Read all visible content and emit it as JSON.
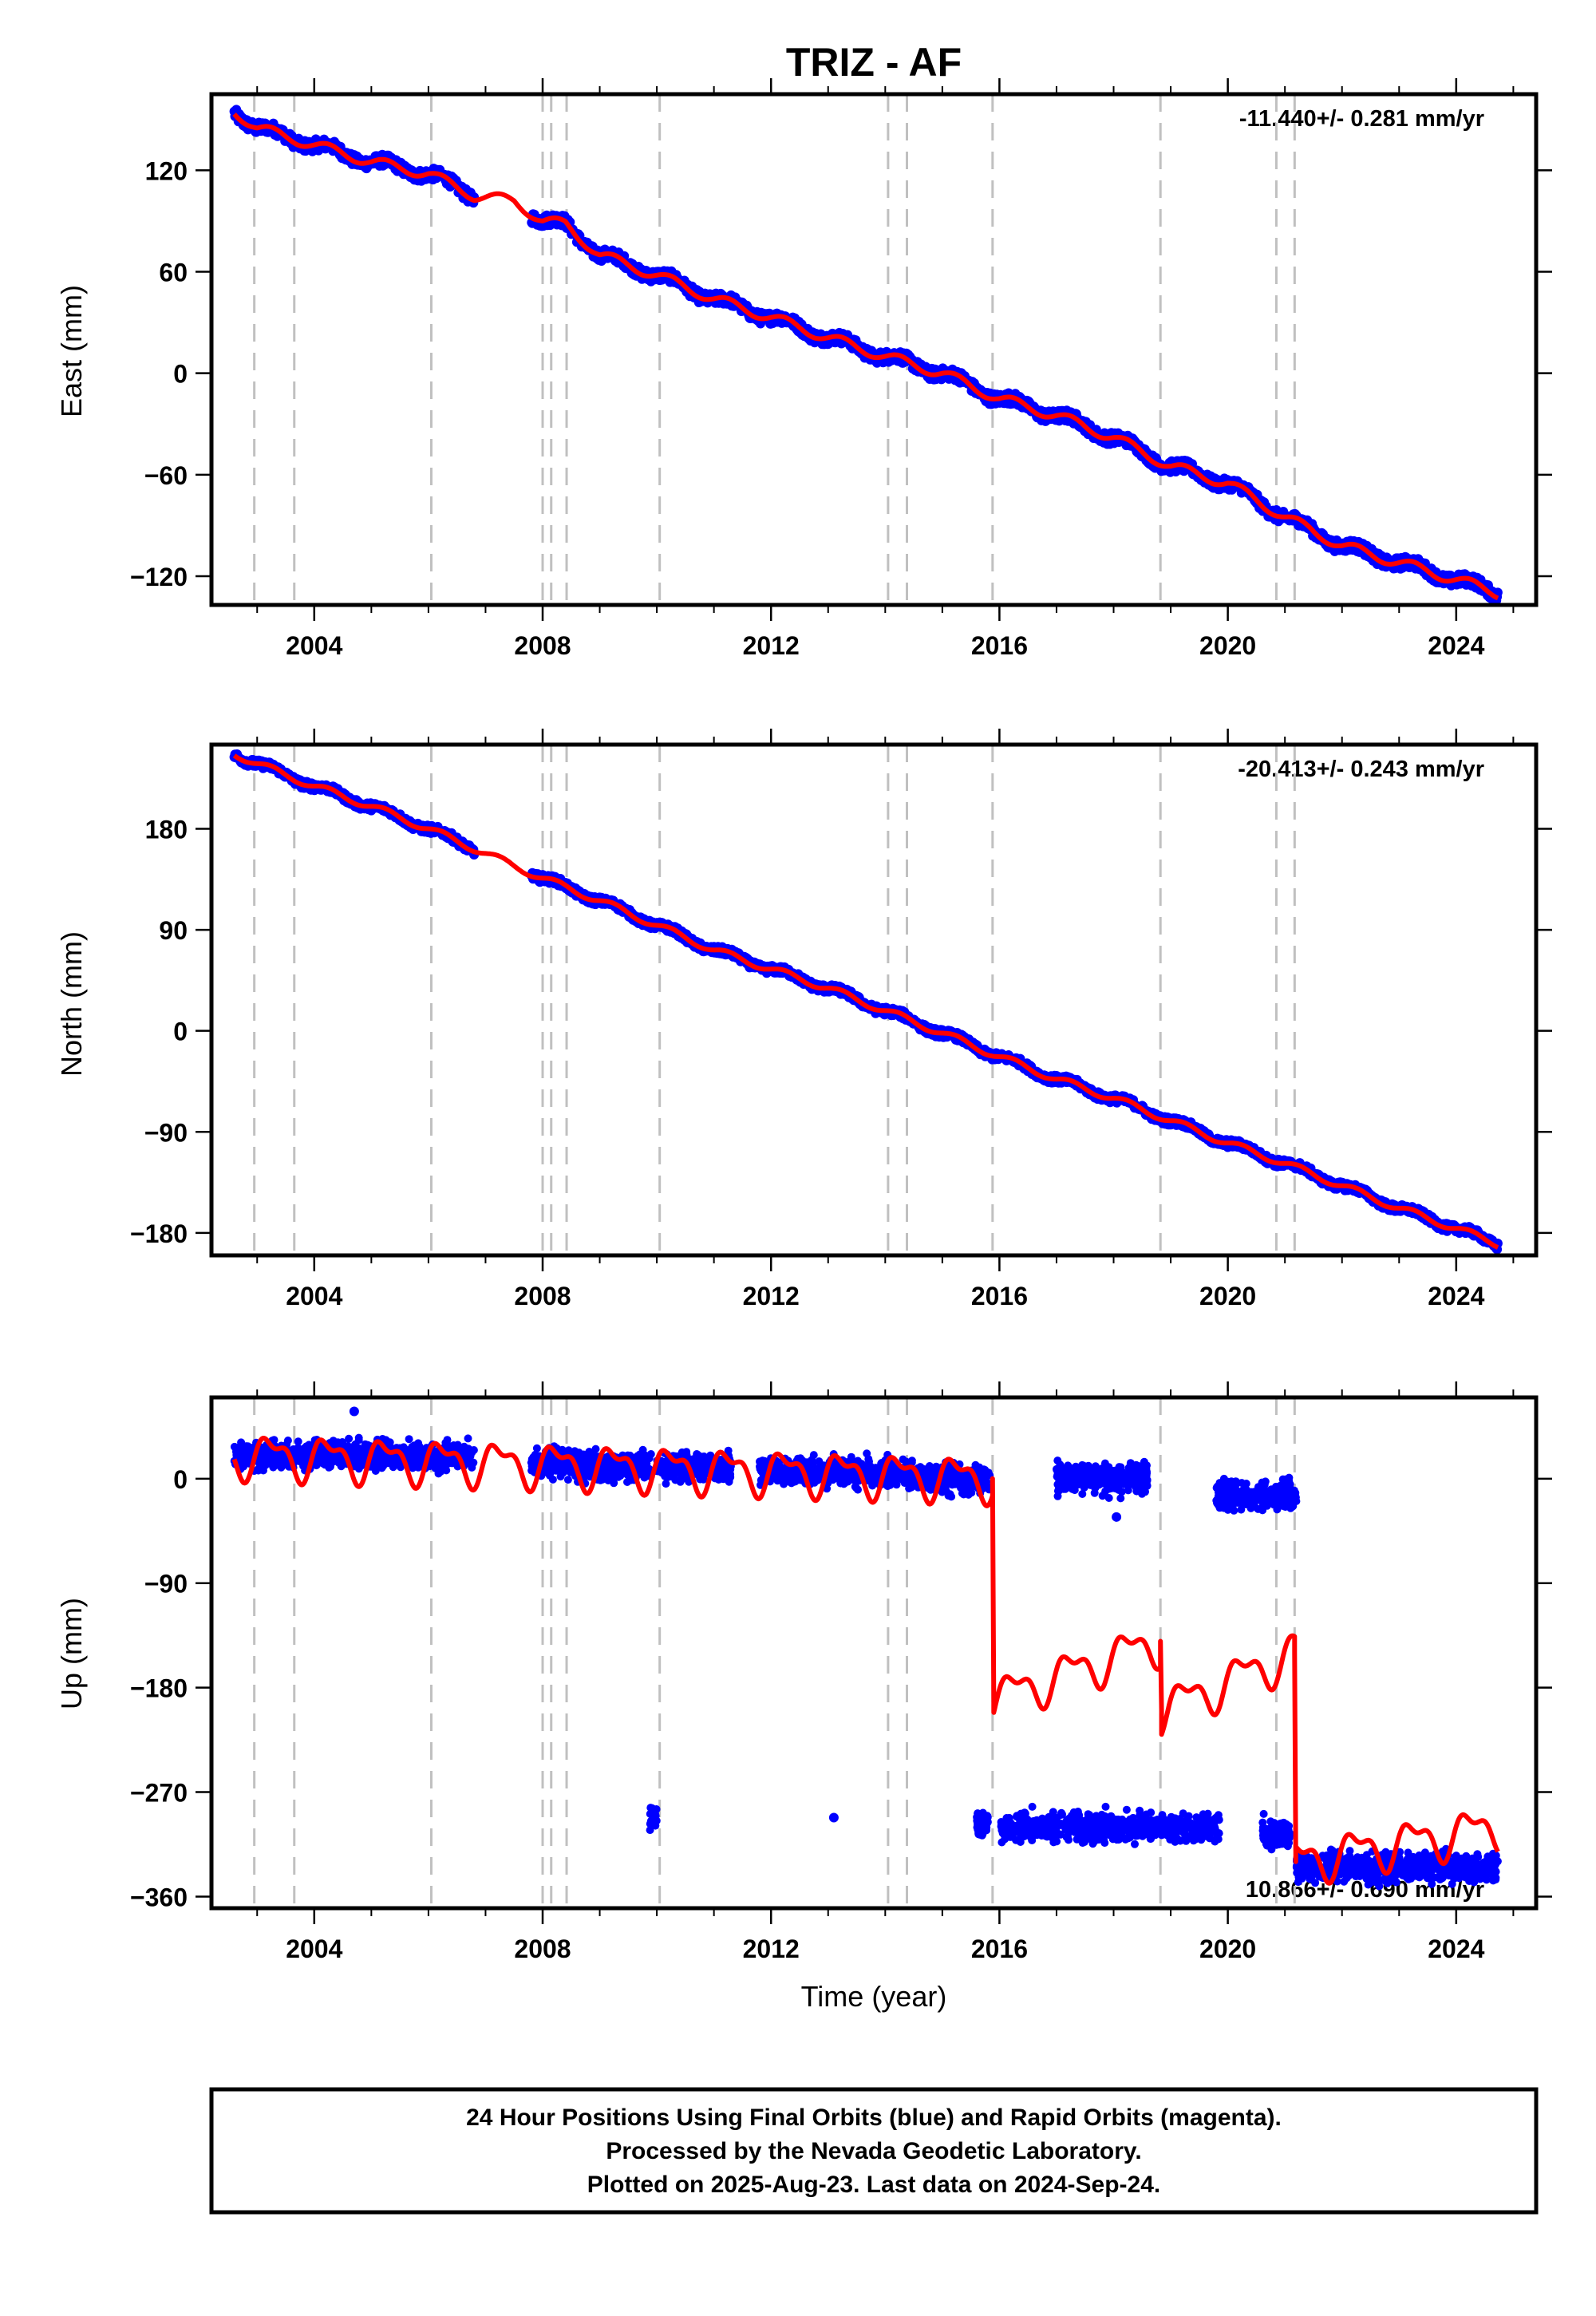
{
  "figure": {
    "title": "TRIZ - AF",
    "xlabel": "Time (year)",
    "footer": [
      "24 Hour Positions Using Final Orbits (blue) and Rapid Orbits (magenta).",
      "Processed by the Nevada Geodetic Laboratory.",
      "Plotted on 2025-Aug-23. Last data on 2024-Sep-24."
    ],
    "colors": {
      "data": "#0000ff",
      "model": "#ff0000",
      "steps": "#c0c0c0",
      "frame": "#000000"
    }
  },
  "chart_data": [
    {
      "type": "scatter",
      "ylabel": "East (mm)",
      "rate": "-11.440+/- 0.281 mm/yr",
      "xlim": [
        2002.2,
        2025.4
      ],
      "ylim": [
        -137,
        165
      ],
      "xticks": [
        "2004",
        "2008",
        "2012",
        "2016",
        "2020",
        "2024"
      ],
      "yticks": [
        "120",
        "60",
        "0",
        "−60",
        "−120"
      ],
      "ytick_values": [
        120,
        60,
        0,
        -60,
        -120
      ],
      "steps": [
        2002.95,
        2003.65,
        2006.05,
        2008.0,
        2008.15,
        2008.42,
        2010.05,
        2014.05,
        2014.38,
        2015.88,
        2018.82,
        2020.85,
        2021.17
      ],
      "data_range": [
        2002.6,
        2024.73
      ],
      "gaps": [
        [
          2006.8,
          2007.8
        ]
      ],
      "series": [
        {
          "x": [
            2002.6,
            2003.0,
            2004.0,
            2005.0,
            2006.0,
            2006.8,
            2007.5,
            2008.0,
            2008.4,
            2009.0,
            2010.0,
            2011.0,
            2012.0,
            2013.0,
            2014.0,
            2015.0,
            2016.0,
            2017.0,
            2018.0,
            2019.0,
            2020.0,
            2021.0,
            2022.0,
            2023.0,
            2024.0,
            2024.73
          ],
          "y": [
            155,
            145,
            135,
            125,
            118,
            105,
            102,
            90,
            88,
            70,
            58,
            44,
            33,
            21,
            10,
            0,
            -15,
            -25,
            -38,
            -55,
            -65,
            -85,
            -102,
            -112,
            -122,
            -130
          ]
        }
      ]
    },
    {
      "type": "scatter",
      "ylabel": "North (mm)",
      "rate": "-20.413+/- 0.243 mm/yr",
      "xlim": [
        2002.2,
        2025.4
      ],
      "ylim": [
        -200,
        255
      ],
      "xticks": [
        "2004",
        "2008",
        "2012",
        "2016",
        "2020",
        "2024"
      ],
      "yticks": [
        "180",
        "90",
        "0",
        "−90",
        "−180"
      ],
      "ytick_values": [
        180,
        90,
        0,
        -90,
        -180
      ],
      "steps": [
        2002.95,
        2003.65,
        2006.05,
        2008.0,
        2008.15,
        2008.42,
        2010.05,
        2014.05,
        2014.38,
        2015.88,
        2018.82,
        2020.85,
        2021.17
      ],
      "data_range": [
        2002.6,
        2024.73
      ],
      "gaps": [
        [
          2006.8,
          2007.8
        ]
      ],
      "series": [
        {
          "x": [
            2002.6,
            2003.0,
            2004.0,
            2005.0,
            2006.0,
            2007.0,
            2008.0,
            2009.0,
            2010.0,
            2011.0,
            2012.0,
            2013.0,
            2014.0,
            2015.0,
            2016.0,
            2017.0,
            2018.0,
            2019.0,
            2020.0,
            2021.0,
            2022.0,
            2023.0,
            2024.0,
            2024.73
          ],
          "y": [
            247,
            238,
            218,
            200,
            180,
            158,
            136,
            116,
            94,
            72,
            55,
            38,
            18,
            -2,
            -23,
            -43,
            -60,
            -80,
            -100,
            -118,
            -138,
            -158,
            -176,
            -190
          ]
        }
      ]
    },
    {
      "type": "scatter",
      "ylabel": "Up (mm)",
      "rate": "10.866+/- 0.690 mm/yr",
      "xlim": [
        2002.2,
        2025.4
      ],
      "ylim": [
        -370,
        70
      ],
      "xticks": [
        "2004",
        "2008",
        "2012",
        "2016",
        "2020",
        "2024"
      ],
      "yticks": [
        "0",
        "−90",
        "−180",
        "−270",
        "−360"
      ],
      "ytick_values": [
        0,
        -90,
        -180,
        -270,
        -360
      ],
      "steps": [
        2002.95,
        2003.65,
        2006.05,
        2008.0,
        2008.15,
        2008.42,
        2010.05,
        2014.05,
        2014.38,
        2015.88,
        2018.82,
        2020.85,
        2021.17
      ],
      "point_clusters": [
        [
          2002.6,
          2006.8,
          20
        ],
        [
          2007.8,
          2008.42,
          15
        ],
        [
          2008.42,
          2009.9,
          10
        ],
        [
          2010.0,
          2011.3,
          10
        ],
        [
          2011.8,
          2014.4,
          6
        ],
        [
          2014.4,
          2015.85,
          0
        ],
        [
          2017.0,
          2018.6,
          0
        ],
        [
          2019.8,
          2021.2,
          -15
        ],
        [
          2009.88,
          2010.0,
          -290
        ],
        [
          2015.6,
          2015.8,
          -297
        ],
        [
          2016.0,
          2019.85,
          -300
        ],
        [
          2020.6,
          2021.1,
          -305
        ],
        [
          2021.2,
          2024.73,
          -335
        ]
      ],
      "isolated_points": [
        [
          2004.7,
          58
        ],
        [
          2013.1,
          -292
        ],
        [
          2018.05,
          -33
        ]
      ],
      "series": [
        {
          "x": [
            2002.6,
            2015.88,
            2015.9,
            2018.82,
            2018.84,
            2021.17,
            2021.19,
            2024.73
          ],
          "y": [
            20,
            0,
            -190,
            -140,
            -200,
            -150,
            -330,
            -300
          ]
        }
      ]
    }
  ]
}
